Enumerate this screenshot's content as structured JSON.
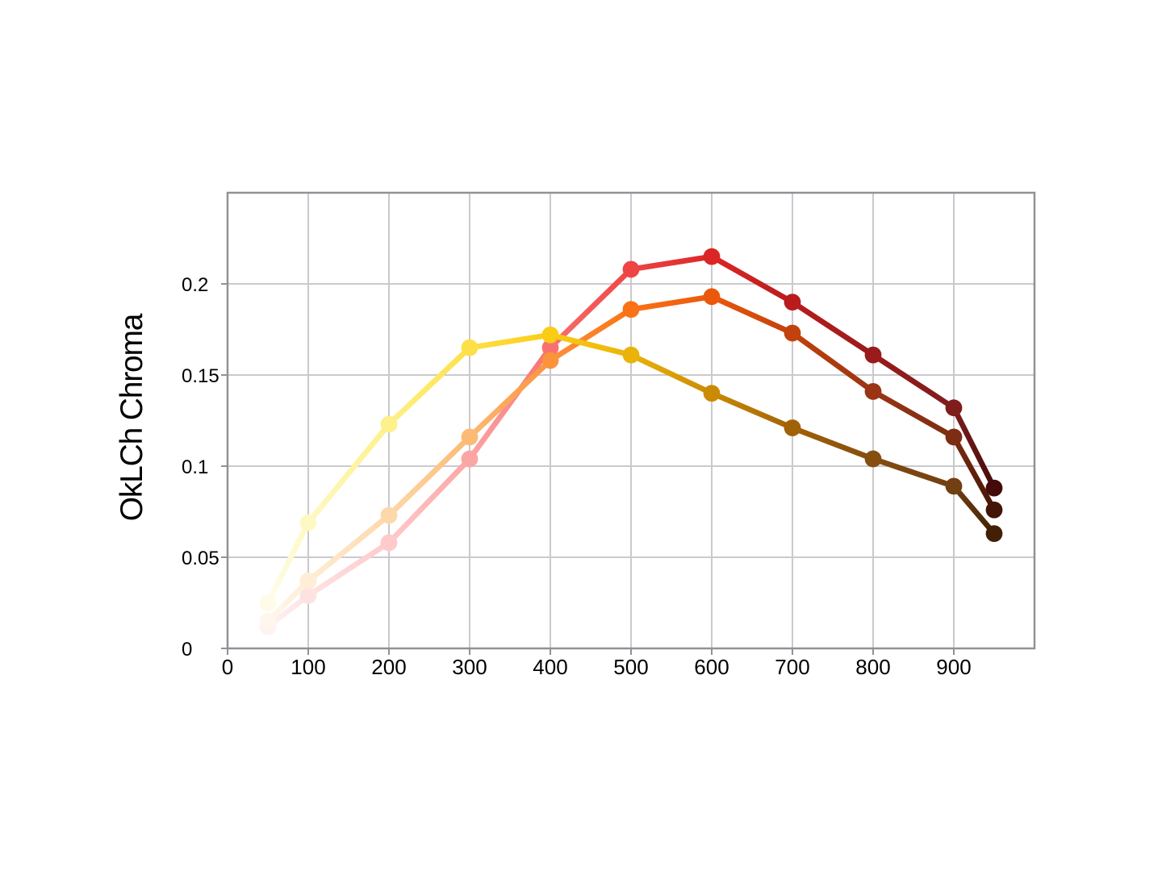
{
  "chart_data": {
    "type": "line",
    "title": "",
    "xlabel": "",
    "ylabel": "OkLCh Chroma",
    "x": [
      50,
      100,
      200,
      300,
      400,
      500,
      600,
      700,
      800,
      900,
      950
    ],
    "xlim": [
      0,
      1000
    ],
    "ylim": [
      0,
      0.25
    ],
    "xticks": [
      0,
      100,
      200,
      300,
      400,
      500,
      600,
      700,
      800,
      900
    ],
    "yticks": [
      0,
      0.05,
      0.1,
      0.15,
      0.2
    ],
    "ytick_labels": [
      "0",
      "0.05",
      "0.1",
      "0.15",
      "0.2"
    ],
    "grid": true,
    "legend": false,
    "series": [
      {
        "name": "red",
        "values": [
          0.012,
          0.029,
          0.058,
          0.104,
          0.165,
          0.208,
          0.215,
          0.19,
          0.161,
          0.132,
          0.088
        ],
        "point_colors": [
          "#fef2f2",
          "#fee2e2",
          "#fecaca",
          "#fca5a5",
          "#f87171",
          "#ef4444",
          "#dc2626",
          "#b91c1c",
          "#991b1b",
          "#7f1d1d",
          "#450a0a"
        ]
      },
      {
        "name": "orange",
        "values": [
          0.015,
          0.037,
          0.073,
          0.116,
          0.158,
          0.186,
          0.193,
          0.173,
          0.141,
          0.116,
          0.076
        ],
        "point_colors": [
          "#fff7ed",
          "#ffedd5",
          "#fed7aa",
          "#fdba74",
          "#fb923c",
          "#f97316",
          "#ea580c",
          "#c2410c",
          "#9a3412",
          "#7c2d12",
          "#431407"
        ]
      },
      {
        "name": "yellow",
        "values": [
          0.025,
          0.069,
          0.123,
          0.165,
          0.172,
          0.161,
          0.14,
          0.121,
          0.104,
          0.089,
          0.063
        ],
        "point_colors": [
          "#fefce8",
          "#fef9c3",
          "#fef08a",
          "#fde047",
          "#facc15",
          "#eab308",
          "#ca8a04",
          "#a16207",
          "#854d0e",
          "#713f12",
          "#422006"
        ]
      }
    ],
    "styles": {
      "grid_color": "#cacace",
      "border_color": "#919197",
      "text_color": "#000000",
      "background": "#ffffff",
      "line_width": 6.8,
      "marker_radius": 10.4
    }
  }
}
